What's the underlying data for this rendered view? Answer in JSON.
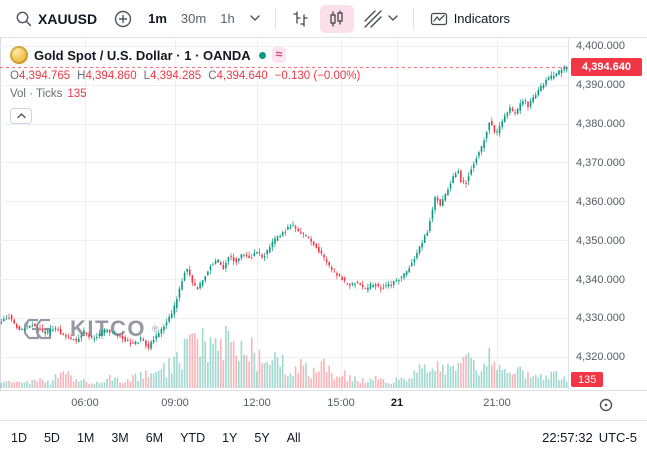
{
  "colors": {
    "up": "#089981",
    "down": "#f23645",
    "grid": "#eef0f6",
    "accent_red": "#f23645",
    "axis_text": "#555a63",
    "vol_up": "rgba(8,153,129,0.38)",
    "vol_down": "rgba(242,54,69,0.38)"
  },
  "toolbar": {
    "symbol": "XAUUSD",
    "timeframes": [
      "1m",
      "30m",
      "1h"
    ],
    "active_timeframe": "1m",
    "indicators_label": "Indicators"
  },
  "legend": {
    "title": "Gold Spot / U.S. Dollar · 1 · OANDA",
    "status_badge": "≈",
    "o_label": "O",
    "o": "4,394.765",
    "h_label": "H",
    "h": "4,394.860",
    "l_label": "L",
    "l": "4,394.285",
    "c_label": "C",
    "c": "4,394.640",
    "change": "−0.130 (−0.00%)",
    "vol_label": "Vol · Ticks",
    "vol_value": "135"
  },
  "watermark": {
    "text": "KITCO",
    "reg": "®"
  },
  "bottom": {
    "ranges": [
      "1D",
      "5D",
      "1M",
      "3M",
      "6M",
      "YTD",
      "1Y",
      "5Y",
      "All"
    ],
    "clock": "22:57:32",
    "timezone": "UTC-5"
  },
  "chart_data": {
    "type": "candlestick",
    "title": "Gold Spot / U.S. Dollar",
    "symbol": "XAUUSD",
    "exchange": "OANDA",
    "interval": "1",
    "ohlc": {
      "open": 4394.765,
      "high": 4394.86,
      "low": 4394.285,
      "close": 4394.64,
      "change": -0.13,
      "change_pct": -0.0,
      "volume_ticks": 135
    },
    "last": 4394.64,
    "last_label": "4,394.640",
    "vol_axis_label": "135",
    "ylim": [
      4312,
      4402
    ],
    "y_gridlines": [
      4400,
      4390,
      4380,
      4370,
      4360,
      4350,
      4340,
      4330,
      4320
    ],
    "y_tick_labels": [
      "4,400.000",
      "4,390.000",
      "4,380.000",
      "4,370.000",
      "4,360.000",
      "4,350.000",
      "4,340.000",
      "4,330.000",
      "4,320.000"
    ],
    "x_ticks": [
      {
        "label": "06:00",
        "t": 0.15,
        "emph": false
      },
      {
        "label": "09:00",
        "t": 0.308,
        "emph": false
      },
      {
        "label": "12:00",
        "t": 0.452,
        "emph": false
      },
      {
        "label": "15:00",
        "t": 0.6,
        "emph": false
      },
      {
        "label": "21",
        "t": 0.699,
        "emph": true
      },
      {
        "label": "21:00",
        "t": 0.875,
        "emph": false
      }
    ],
    "price_path": [
      [
        0.0,
        4328.5
      ],
      [
        0.018,
        4330.5
      ],
      [
        0.035,
        4327.0
      ],
      [
        0.06,
        4328.5
      ],
      [
        0.08,
        4326.0
      ],
      [
        0.1,
        4327.5
      ],
      [
        0.115,
        4325.5
      ],
      [
        0.135,
        4324.0
      ],
      [
        0.15,
        4326.5
      ],
      [
        0.165,
        4324.5
      ],
      [
        0.19,
        4327.0
      ],
      [
        0.215,
        4325.0
      ],
      [
        0.235,
        4323.0
      ],
      [
        0.25,
        4324.5
      ],
      [
        0.264,
        4322.5
      ],
      [
        0.274,
        4325.0
      ],
      [
        0.285,
        4326.5
      ],
      [
        0.295,
        4329.0
      ],
      [
        0.306,
        4331.5
      ],
      [
        0.316,
        4336.0
      ],
      [
        0.327,
        4341.5
      ],
      [
        0.333,
        4343.0
      ],
      [
        0.34,
        4339.0
      ],
      [
        0.35,
        4337.5
      ],
      [
        0.36,
        4340.0
      ],
      [
        0.372,
        4343.5
      ],
      [
        0.385,
        4345.0
      ],
      [
        0.394,
        4342.5
      ],
      [
        0.405,
        4346.0
      ],
      [
        0.418,
        4344.5
      ],
      [
        0.43,
        4346.5
      ],
      [
        0.443,
        4345.0
      ],
      [
        0.452,
        4347.5
      ],
      [
        0.465,
        4345.5
      ],
      [
        0.478,
        4348.5
      ],
      [
        0.492,
        4351.0
      ],
      [
        0.505,
        4352.5
      ],
      [
        0.516,
        4354.0
      ],
      [
        0.527,
        4352.5
      ],
      [
        0.54,
        4351.0
      ],
      [
        0.553,
        4349.5
      ],
      [
        0.565,
        4347.0
      ],
      [
        0.576,
        4344.5
      ],
      [
        0.588,
        4342.0
      ],
      [
        0.6,
        4340.5
      ],
      [
        0.615,
        4338.5
      ],
      [
        0.63,
        4339.2
      ],
      [
        0.645,
        4337.5
      ],
      [
        0.66,
        4338.8
      ],
      [
        0.675,
        4337.8
      ],
      [
        0.69,
        4338.6
      ],
      [
        0.699,
        4339.5
      ],
      [
        0.708,
        4340.5
      ],
      [
        0.72,
        4342.5
      ],
      [
        0.733,
        4345.5
      ],
      [
        0.744,
        4349.0
      ],
      [
        0.754,
        4352.0
      ],
      [
        0.762,
        4357.0
      ],
      [
        0.769,
        4361.5
      ],
      [
        0.776,
        4359.0
      ],
      [
        0.783,
        4360.5
      ],
      [
        0.792,
        4363.5
      ],
      [
        0.8,
        4366.5
      ],
      [
        0.808,
        4368.5
      ],
      [
        0.814,
        4365.0
      ],
      [
        0.822,
        4364.5
      ],
      [
        0.83,
        4368.0
      ],
      [
        0.84,
        4371.0
      ],
      [
        0.85,
        4374.0
      ],
      [
        0.858,
        4377.5
      ],
      [
        0.865,
        4381.0
      ],
      [
        0.872,
        4378.0
      ],
      [
        0.878,
        4377.5
      ],
      [
        0.885,
        4380.0
      ],
      [
        0.893,
        4382.5
      ],
      [
        0.9,
        4384.0
      ],
      [
        0.908,
        4382.0
      ],
      [
        0.916,
        4384.5
      ],
      [
        0.925,
        4386.0
      ],
      [
        0.932,
        4384.5
      ],
      [
        0.94,
        4386.5
      ],
      [
        0.95,
        4388.5
      ],
      [
        0.958,
        4390.0
      ],
      [
        0.966,
        4391.5
      ],
      [
        0.975,
        4392.2
      ],
      [
        0.983,
        4393.0
      ],
      [
        0.992,
        4393.8
      ],
      [
        1.0,
        4394.64
      ]
    ],
    "vol_profile": [
      [
        0.0,
        0.1
      ],
      [
        0.03,
        0.08
      ],
      [
        0.06,
        0.14
      ],
      [
        0.09,
        0.1
      ],
      [
        0.11,
        0.3
      ],
      [
        0.13,
        0.12
      ],
      [
        0.16,
        0.1
      ],
      [
        0.19,
        0.16
      ],
      [
        0.22,
        0.12
      ],
      [
        0.25,
        0.22
      ],
      [
        0.27,
        0.18
      ],
      [
        0.29,
        0.3
      ],
      [
        0.31,
        0.45
      ],
      [
        0.33,
        0.7
      ],
      [
        0.345,
        0.9
      ],
      [
        0.36,
        0.75
      ],
      [
        0.375,
        0.6
      ],
      [
        0.39,
        0.8
      ],
      [
        0.4,
        0.95
      ],
      [
        0.415,
        0.7
      ],
      [
        0.43,
        0.55
      ],
      [
        0.445,
        0.65
      ],
      [
        0.452,
        0.5
      ],
      [
        0.465,
        0.4
      ],
      [
        0.48,
        0.55
      ],
      [
        0.495,
        0.45
      ],
      [
        0.51,
        0.35
      ],
      [
        0.525,
        0.42
      ],
      [
        0.54,
        0.3
      ],
      [
        0.555,
        0.25
      ],
      [
        0.57,
        0.35
      ],
      [
        0.585,
        0.28
      ],
      [
        0.6,
        0.22
      ],
      [
        0.615,
        0.18
      ],
      [
        0.63,
        0.14
      ],
      [
        0.645,
        0.12
      ],
      [
        0.66,
        0.16
      ],
      [
        0.675,
        0.12
      ],
      [
        0.69,
        0.1
      ],
      [
        0.7,
        0.2
      ],
      [
        0.715,
        0.15
      ],
      [
        0.73,
        0.25
      ],
      [
        0.745,
        0.3
      ],
      [
        0.755,
        0.45
      ],
      [
        0.765,
        0.55
      ],
      [
        0.775,
        0.35
      ],
      [
        0.79,
        0.3
      ],
      [
        0.8,
        0.38
      ],
      [
        0.81,
        0.3
      ],
      [
        0.825,
        0.95
      ],
      [
        0.835,
        0.4
      ],
      [
        0.85,
        0.3
      ],
      [
        0.862,
        0.48
      ],
      [
        0.875,
        0.3
      ],
      [
        0.89,
        0.25
      ],
      [
        0.9,
        0.2
      ],
      [
        0.915,
        0.28
      ],
      [
        0.93,
        0.2
      ],
      [
        0.945,
        0.25
      ],
      [
        0.96,
        0.18
      ],
      [
        0.975,
        0.22
      ],
      [
        0.99,
        0.15
      ],
      [
        1.0,
        0.12
      ]
    ],
    "synth": {
      "candles": 220,
      "seed": 11,
      "wick": 1.1,
      "body_jitter": 0.9
    }
  }
}
